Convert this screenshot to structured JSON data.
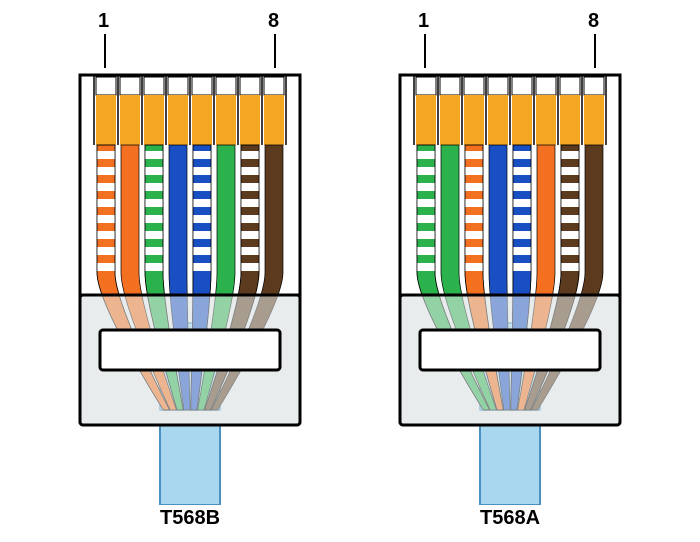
{
  "diagram": {
    "background_color": "#ffffff",
    "outline_color": "#000000",
    "outline_width": 3,
    "pin_band_color": "#f5a623",
    "pin_top_color": "#ffffff",
    "clip_area_color": "#e8eced",
    "cable_color": "#a9d7f0",
    "cable_outline": "#4a90c2",
    "wire_band_color": "#ffffff",
    "label_font_size": 20,
    "label_font_weight": "bold",
    "pin_label_1": "1",
    "pin_label_8": "8"
  },
  "connectors": [
    {
      "id": "t568b",
      "label": "T568B",
      "wires": [
        {
          "color": "#f37021",
          "striped": true
        },
        {
          "color": "#f37021",
          "striped": false
        },
        {
          "color": "#2bb24c",
          "striped": true
        },
        {
          "color": "#1a4fc4",
          "striped": false
        },
        {
          "color": "#1a4fc4",
          "striped": true
        },
        {
          "color": "#2bb24c",
          "striped": false
        },
        {
          "color": "#5c3a1e",
          "striped": true
        },
        {
          "color": "#5c3a1e",
          "striped": false
        }
      ]
    },
    {
      "id": "t568a",
      "label": "T568A",
      "wires": [
        {
          "color": "#2bb24c",
          "striped": true
        },
        {
          "color": "#2bb24c",
          "striped": false
        },
        {
          "color": "#f37021",
          "striped": true
        },
        {
          "color": "#1a4fc4",
          "striped": false
        },
        {
          "color": "#1a4fc4",
          "striped": true
        },
        {
          "color": "#f37021",
          "striped": false
        },
        {
          "color": "#5c3a1e",
          "striped": true
        },
        {
          "color": "#5c3a1e",
          "striped": false
        }
      ]
    }
  ]
}
